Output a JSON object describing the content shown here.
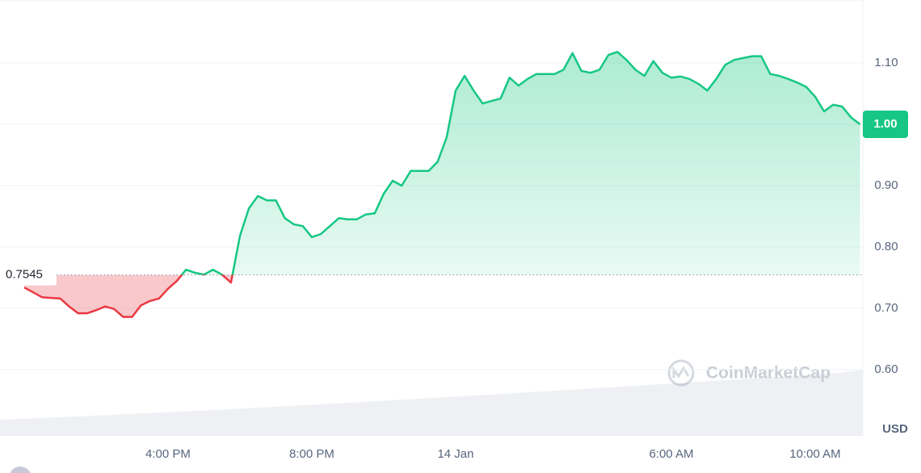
{
  "chart_data": {
    "type": "line",
    "categories": [
      null,
      null,
      null,
      null,
      null,
      null,
      null,
      null,
      null,
      null,
      null,
      null,
      null,
      null,
      null,
      null,
      "4:00 PM",
      null,
      null,
      null,
      null,
      null,
      null,
      null,
      null,
      null,
      null,
      null,
      null,
      null,
      null,
      null,
      "8:00 PM",
      null,
      null,
      null,
      null,
      null,
      null,
      null,
      null,
      null,
      null,
      null,
      null,
      null,
      null,
      null,
      "14 Jan",
      null,
      null,
      null,
      null,
      null,
      null,
      null,
      null,
      null,
      null,
      null,
      null,
      null,
      null,
      null,
      null,
      null,
      null,
      null,
      null,
      null,
      null,
      null,
      "6:00 AM",
      null,
      null,
      null,
      null,
      null,
      null,
      null,
      null,
      null,
      null,
      null,
      null,
      null,
      null,
      null,
      "10:00 AM",
      null,
      null,
      null,
      null,
      null
    ],
    "values": [
      0.734,
      0.726,
      0.718,
      0.717,
      0.716,
      0.703,
      0.692,
      0.692,
      0.697,
      0.703,
      0.699,
      0.686,
      0.686,
      0.705,
      0.712,
      0.716,
      0.732,
      0.745,
      0.763,
      0.758,
      0.755,
      0.763,
      0.755,
      0.742,
      0.818,
      0.863,
      0.883,
      0.876,
      0.876,
      0.847,
      0.837,
      0.834,
      0.816,
      0.821,
      0.834,
      0.847,
      0.845,
      0.845,
      0.853,
      0.855,
      0.887,
      0.908,
      0.9,
      0.924,
      0.924,
      0.924,
      0.939,
      0.979,
      1.055,
      1.079,
      1.055,
      1.034,
      1.038,
      1.042,
      1.076,
      1.063,
      1.074,
      1.082,
      1.082,
      1.082,
      1.089,
      1.116,
      1.087,
      1.084,
      1.089,
      1.113,
      1.118,
      1.105,
      1.089,
      1.079,
      1.103,
      1.084,
      1.076,
      1.078,
      1.074,
      1.066,
      1.055,
      1.074,
      1.097,
      1.105,
      1.108,
      1.111,
      1.111,
      1.082,
      1.079,
      1.074,
      1.068,
      1.061,
      1.045,
      1.021,
      1.032,
      1.029,
      1.011,
      1.0
    ],
    "up_color": "#16c784",
    "down_color": "#ea3943",
    "baseline": 0.7545,
    "last_label": {
      "value": 1.0,
      "label": "1.00"
    },
    "ylim": [
      0.49,
      1.2
    ],
    "yticks": [
      {
        "value": 0.6,
        "label": "0.60"
      },
      {
        "value": 0.7,
        "label": "0.70"
      },
      {
        "value": 0.8,
        "label": "0.80"
      },
      {
        "value": 0.9,
        "label": "0.90"
      },
      {
        "value": 1.0,
        "label": "1.00"
      },
      {
        "value": 1.1,
        "label": "1.10"
      }
    ],
    "grid": true,
    "unit_label": "USD",
    "watermark": "CoinMarketCap"
  }
}
